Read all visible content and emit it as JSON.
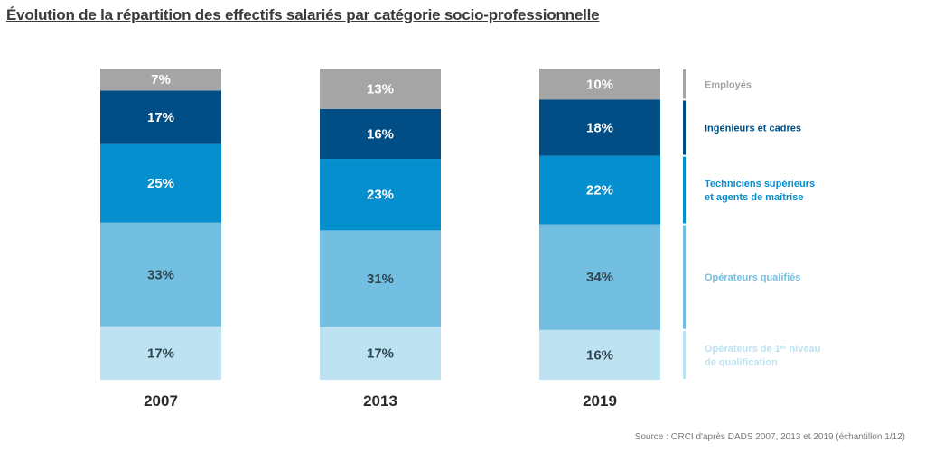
{
  "title": "Évolution de la répartition des effectifs salariés par catégorie socio-professionnelle",
  "source": "Source : ORCI d'après DADS 2007, 2013 et 2019 (échantillon 1/12)",
  "chart_data": {
    "type": "bar",
    "stacked": true,
    "unit": "%",
    "categories": [
      "2007",
      "2013",
      "2019"
    ],
    "series": [
      {
        "name": "Opérateurs de 1er niveau de qualification",
        "legend_lines": [
          "Opérateurs de 1^er^ niveau",
          "de qualification"
        ],
        "color": "#bde2f1",
        "label_color": "#2f4650",
        "values": [
          17,
          17,
          16
        ]
      },
      {
        "name": "Opérateurs qualifiés",
        "legend_lines": [
          "Opérateurs qualifiés"
        ],
        "color": "#72bfe2",
        "label_color": "#2f4650",
        "values": [
          33,
          31,
          34
        ]
      },
      {
        "name": "Techniciens supérieurs et agents de maîtrise",
        "legend_lines": [
          "Techniciens supérieurs",
          "et agents de maîtrise"
        ],
        "color": "#068fce",
        "label_color": "#ffffff",
        "values": [
          25,
          23,
          22
        ]
      },
      {
        "name": "Ingénieurs et cadres",
        "legend_lines": [
          "Ingénieurs et cadres"
        ],
        "color": "#004e85",
        "label_color": "#ffffff",
        "values": [
          17,
          16,
          18
        ]
      },
      {
        "name": "Employés",
        "legend_lines": [
          "Employés"
        ],
        "color": "#a5a5a5",
        "label_color": "#ffffff",
        "values": [
          7,
          13,
          10
        ]
      }
    ],
    "legend_position": "right",
    "grid": false
  }
}
